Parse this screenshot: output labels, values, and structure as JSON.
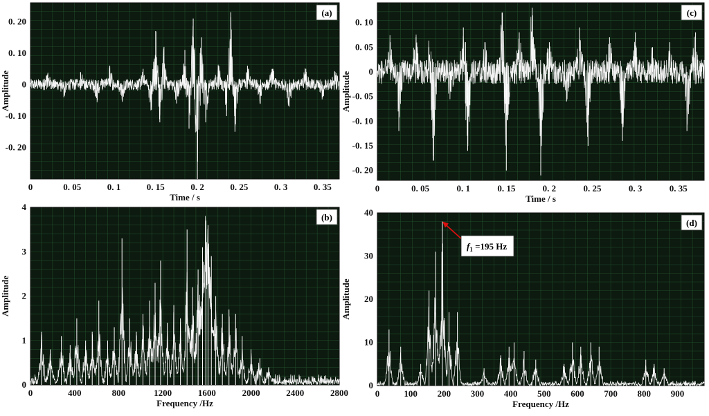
{
  "figure": {
    "panels": [
      "(a)",
      "(b)",
      "(c)",
      "(d)"
    ]
  },
  "chart_data": [
    {
      "id": "a",
      "type": "line",
      "label": "(a)",
      "xlabel": "Time / s",
      "ylabel": "Amplitude",
      "xlim": [
        0,
        0.37
      ],
      "ylim": [
        -0.3,
        0.26
      ],
      "xticks": [
        0,
        0.05,
        0.1,
        0.15,
        0.2,
        0.25,
        0.3,
        0.35
      ],
      "xtick_labels": [
        "0",
        "0. 05",
        "0. 1",
        "0. 15",
        "0. 2",
        "0. 25",
        "0. 3",
        "0. 35"
      ],
      "yticks": [
        0.2,
        0.1,
        0,
        -0.1,
        -0.2
      ],
      "ytick_labels": [
        "0. 20",
        "0. 10",
        "0",
        "-0. 10",
        "-0. 20"
      ],
      "grid": true,
      "series": [
        {
          "baseline_noise": 0.018,
          "x": [
            0.02,
            0.04,
            0.06,
            0.08,
            0.095,
            0.11,
            0.135,
            0.145,
            0.15,
            0.155,
            0.16,
            0.175,
            0.185,
            0.19,
            0.195,
            0.2,
            0.205,
            0.21,
            0.225,
            0.235,
            0.24,
            0.245,
            0.26,
            0.275,
            0.29,
            0.31,
            0.33,
            0.35,
            0.365
          ],
          "y": [
            0.03,
            -0.04,
            0.04,
            -0.05,
            0.06,
            -0.05,
            0.05,
            -0.08,
            0.17,
            -0.12,
            0.12,
            -0.06,
            0.11,
            -0.14,
            0.21,
            -0.3,
            0.15,
            -0.12,
            0.06,
            -0.1,
            0.23,
            -0.15,
            0.06,
            -0.06,
            0.05,
            -0.07,
            0.05,
            -0.04,
            0.04
          ]
        }
      ]
    },
    {
      "id": "b",
      "type": "line",
      "label": "(b)",
      "xlabel": "Frequency /Hz",
      "ylabel": "Amplitude",
      "xlim": [
        0,
        2800
      ],
      "ylim": [
        0,
        4
      ],
      "xticks": [
        0,
        400,
        800,
        1200,
        1600,
        2000,
        2400,
        2800
      ],
      "xtick_labels": [
        "0",
        "400",
        "800",
        "1200",
        "1600",
        "2000",
        "2400",
        "2800"
      ],
      "yticks": [
        0,
        1,
        2,
        3,
        4
      ],
      "ytick_labels": [
        "0",
        "1",
        "2",
        "3",
        "4"
      ],
      "grid": true,
      "series": [
        {
          "baseline_noise": 0.25,
          "x": [
            100,
            180,
            280,
            360,
            420,
            500,
            560,
            620,
            700,
            760,
            830,
            900,
            960,
            1020,
            1080,
            1130,
            1180,
            1240,
            1300,
            1360,
            1420,
            1470,
            1520,
            1560,
            1590,
            1610,
            1640,
            1680,
            1740,
            1800,
            1860,
            1920,
            2000,
            2080,
            2160
          ],
          "y": [
            1.2,
            0.8,
            1.1,
            0.9,
            1.5,
            1.0,
            1.2,
            1.9,
            1.0,
            1.3,
            3.3,
            1.5,
            1.2,
            1.6,
            1.9,
            2.3,
            2.8,
            1.4,
            1.8,
            1.5,
            3.5,
            2.2,
            2.6,
            3.1,
            3.7,
            3.6,
            2.9,
            2.0,
            1.6,
            1.7,
            1.6,
            1.1,
            0.8,
            0.6,
            0.4
          ]
        }
      ]
    },
    {
      "id": "c",
      "type": "line",
      "label": "(c)",
      "xlabel": "Time / s",
      "ylabel": "Amplitude",
      "xlim": [
        0,
        0.38
      ],
      "ylim": [
        -0.22,
        0.14
      ],
      "xticks": [
        0,
        0.05,
        0.1,
        0.15,
        0.2,
        0.25,
        0.3,
        0.35
      ],
      "xtick_labels": [
        "0",
        "0. 05",
        "0. 1",
        "0. 15",
        "0. 2",
        "0. 25",
        "0. 3",
        "0. 35"
      ],
      "yticks": [
        0.1,
        0.05,
        0,
        -0.05,
        -0.1,
        -0.15,
        -0.2
      ],
      "ytick_labels": [
        "0. 10",
        "0. 05",
        "0",
        "-0. 05",
        "-0. 10",
        "-0. 15",
        "-0. 20"
      ],
      "grid": true,
      "series": [
        {
          "baseline_noise": 0.025,
          "x": [
            0.015,
            0.025,
            0.045,
            0.06,
            0.065,
            0.085,
            0.1,
            0.105,
            0.125,
            0.145,
            0.15,
            0.165,
            0.18,
            0.19,
            0.2,
            0.22,
            0.235,
            0.245,
            0.27,
            0.285,
            0.3,
            0.32,
            0.34,
            0.36,
            0.37
          ],
          "y": [
            0.06,
            -0.12,
            0.07,
            0.05,
            -0.18,
            -0.04,
            0.09,
            -0.16,
            0.06,
            0.12,
            -0.2,
            0.08,
            0.13,
            -0.21,
            0.06,
            -0.06,
            0.09,
            -0.15,
            0.07,
            -0.14,
            0.08,
            0.05,
            0.06,
            -0.12,
            0.08
          ]
        }
      ]
    },
    {
      "id": "d",
      "type": "line",
      "label": "(d)",
      "xlabel": "Frequency /Hz",
      "ylabel": "Amplitude",
      "xlim": [
        0,
        980
      ],
      "ylim": [
        0,
        40
      ],
      "xticks": [
        0,
        100,
        200,
        300,
        400,
        500,
        600,
        700,
        800,
        900
      ],
      "xtick_labels": [
        "0",
        "100",
        "200",
        "300",
        "400",
        "500",
        "600",
        "700",
        "800",
        "900"
      ],
      "yticks": [
        0,
        10,
        20,
        30,
        40
      ],
      "ytick_labels": [
        "0",
        "10",
        "20",
        "30",
        "40"
      ],
      "grid": true,
      "annotation": {
        "text_italic": "f",
        "text_sub": "1",
        "text_rest": " =195 Hz",
        "x": 195,
        "y": 38,
        "color": "#e01010"
      },
      "series": [
        {
          "baseline_noise": 1.2,
          "x": [
            35,
            70,
            130,
            155,
            175,
            195,
            215,
            240,
            320,
            370,
            395,
            410,
            440,
            475,
            560,
            585,
            610,
            640,
            665,
            805,
            830,
            860
          ],
          "y": [
            13,
            9,
            5,
            22,
            31,
            38,
            17,
            17,
            4,
            7,
            9,
            10,
            8,
            6,
            5,
            10,
            9,
            10,
            9,
            6,
            5,
            4
          ]
        }
      ]
    }
  ]
}
